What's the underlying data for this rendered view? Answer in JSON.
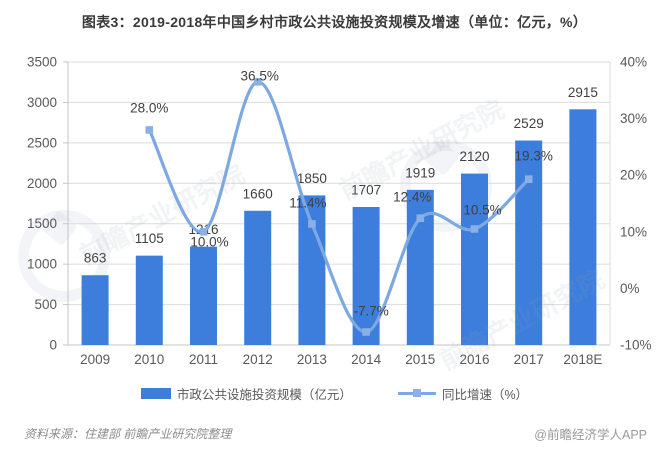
{
  "title": "图表3：2019-2018年中国乡村市政公共设施投资规模及增速（单位：亿元，%）",
  "chart_data": {
    "type": "combo",
    "categories": [
      "2009",
      "2010",
      "2011",
      "2012",
      "2013",
      "2014",
      "2015",
      "2016",
      "2017",
      "2018E"
    ],
    "series": [
      {
        "name": "市政公共设施投资规模（亿元）",
        "type": "bar",
        "axis": "left",
        "values": [
          863,
          1105,
          1216,
          1660,
          1850,
          1707,
          1919,
          2120,
          2529,
          2915
        ],
        "labels": [
          "863",
          "1105",
          "1216",
          "1660",
          "1850",
          "1707",
          "1919",
          "2120",
          "2529",
          "2915"
        ]
      },
      {
        "name": "同比增速（%）",
        "type": "line",
        "axis": "right",
        "categories": [
          "2010",
          "2011",
          "2012",
          "2013",
          "2014",
          "2015",
          "2016",
          "2017"
        ],
        "values": [
          28.0,
          10.0,
          36.5,
          11.4,
          -7.7,
          12.4,
          10.5,
          19.3
        ],
        "labels": [
          "28.0%",
          "10.0%",
          "36.5%",
          "11.4%",
          "-7.7%",
          "12.4%",
          "10.5%",
          "19.3%"
        ]
      }
    ],
    "left_axis": {
      "min": 0,
      "max": 3500,
      "step": 500,
      "ticks": [
        "0",
        "500",
        "1000",
        "1500",
        "2000",
        "2500",
        "3000",
        "3500"
      ]
    },
    "right_axis": {
      "min": -10,
      "max": 40,
      "step": 10,
      "ticks": [
        "-10%",
        "0%",
        "10%",
        "20%",
        "30%",
        "40%"
      ]
    },
    "grid": true,
    "legend_position": "bottom"
  },
  "footer": {
    "source": "资料来源：住建部  前瞻产业研究院整理",
    "credit": "@前瞻经济学人APP"
  },
  "watermark": {
    "text": "前瞻产业研究院"
  },
  "colors": {
    "bar": "#3D7EDC",
    "line": "#7CA9E2",
    "marker": "#8AB0E6",
    "grid": "#DCDCDC",
    "axis_line": "#C6C6C6",
    "axis_text": "#595959",
    "label_text": "#404040",
    "title_text": "#3A3A3A",
    "source_text": "#8C8C8C"
  }
}
